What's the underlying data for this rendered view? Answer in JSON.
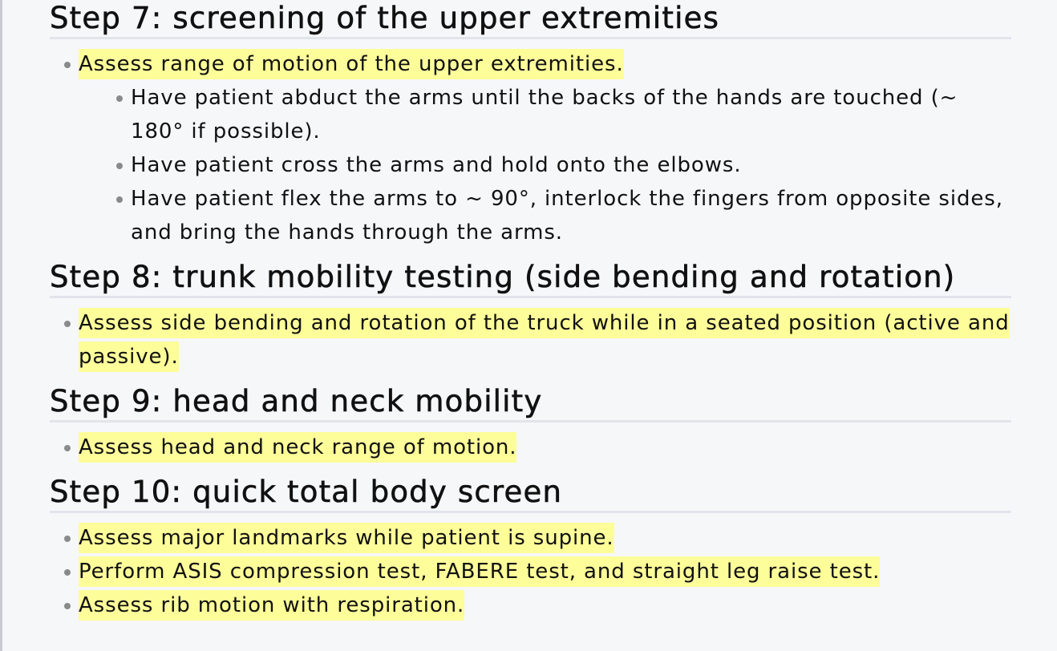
{
  "sections": [
    {
      "title": "Step 7: screening of the upper extremities",
      "items": [
        {
          "text": "Assess range of motion of the upper extremities.",
          "subitems": [
            "Have patient abduct the arms until the backs of the hands are touched (~ 180° if possible).",
            "Have patient cross the arms and hold onto the elbows.",
            "Have patient flex the arms to ~ 90°, interlock the fingers from opposite sides, and bring the hands through the arms."
          ]
        }
      ]
    },
    {
      "title": "Step 8: trunk mobility testing (side bending and rotation)",
      "items": [
        {
          "text": "Assess side bending and rotation of the truck while in a seated position (active and passive)."
        }
      ]
    },
    {
      "title": "Step 9: head and neck mobility",
      "items": [
        {
          "text": "Assess head and neck range of motion."
        }
      ]
    },
    {
      "title": "Step 10: quick total body screen",
      "items": [
        {
          "text": "Assess major landmarks while patient is supine."
        },
        {
          "text": "Perform ASIS compression test, FABERE test, and straight leg raise test."
        },
        {
          "text": "Assess rib motion with respiration."
        }
      ]
    }
  ],
  "colors": {
    "highlight": "#fdfd9a",
    "background": "#f6f7f9",
    "heading_rule": "#e1e4ea",
    "bullet": "#8a8a8a"
  }
}
